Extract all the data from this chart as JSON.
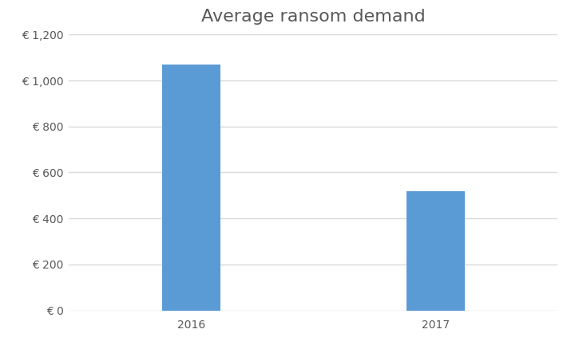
{
  "title": "Average ransom demand",
  "categories": [
    "2016",
    "2017"
  ],
  "values": [
    1070,
    520
  ],
  "bar_color": "#5B9BD5",
  "ylim": [
    0,
    1200
  ],
  "yticks": [
    0,
    200,
    400,
    600,
    800,
    1000,
    1200
  ],
  "ytick_labels": [
    "€ 0",
    "€ 200",
    "€ 400",
    "€ 600",
    "€ 800",
    "€ 1,000",
    "€ 1,200"
  ],
  "title_fontsize": 16,
  "tick_fontsize": 10,
  "background_color": "#ffffff",
  "bar_width": 0.12,
  "grid_color": "#d9d9d9",
  "grid_linewidth": 1.0
}
